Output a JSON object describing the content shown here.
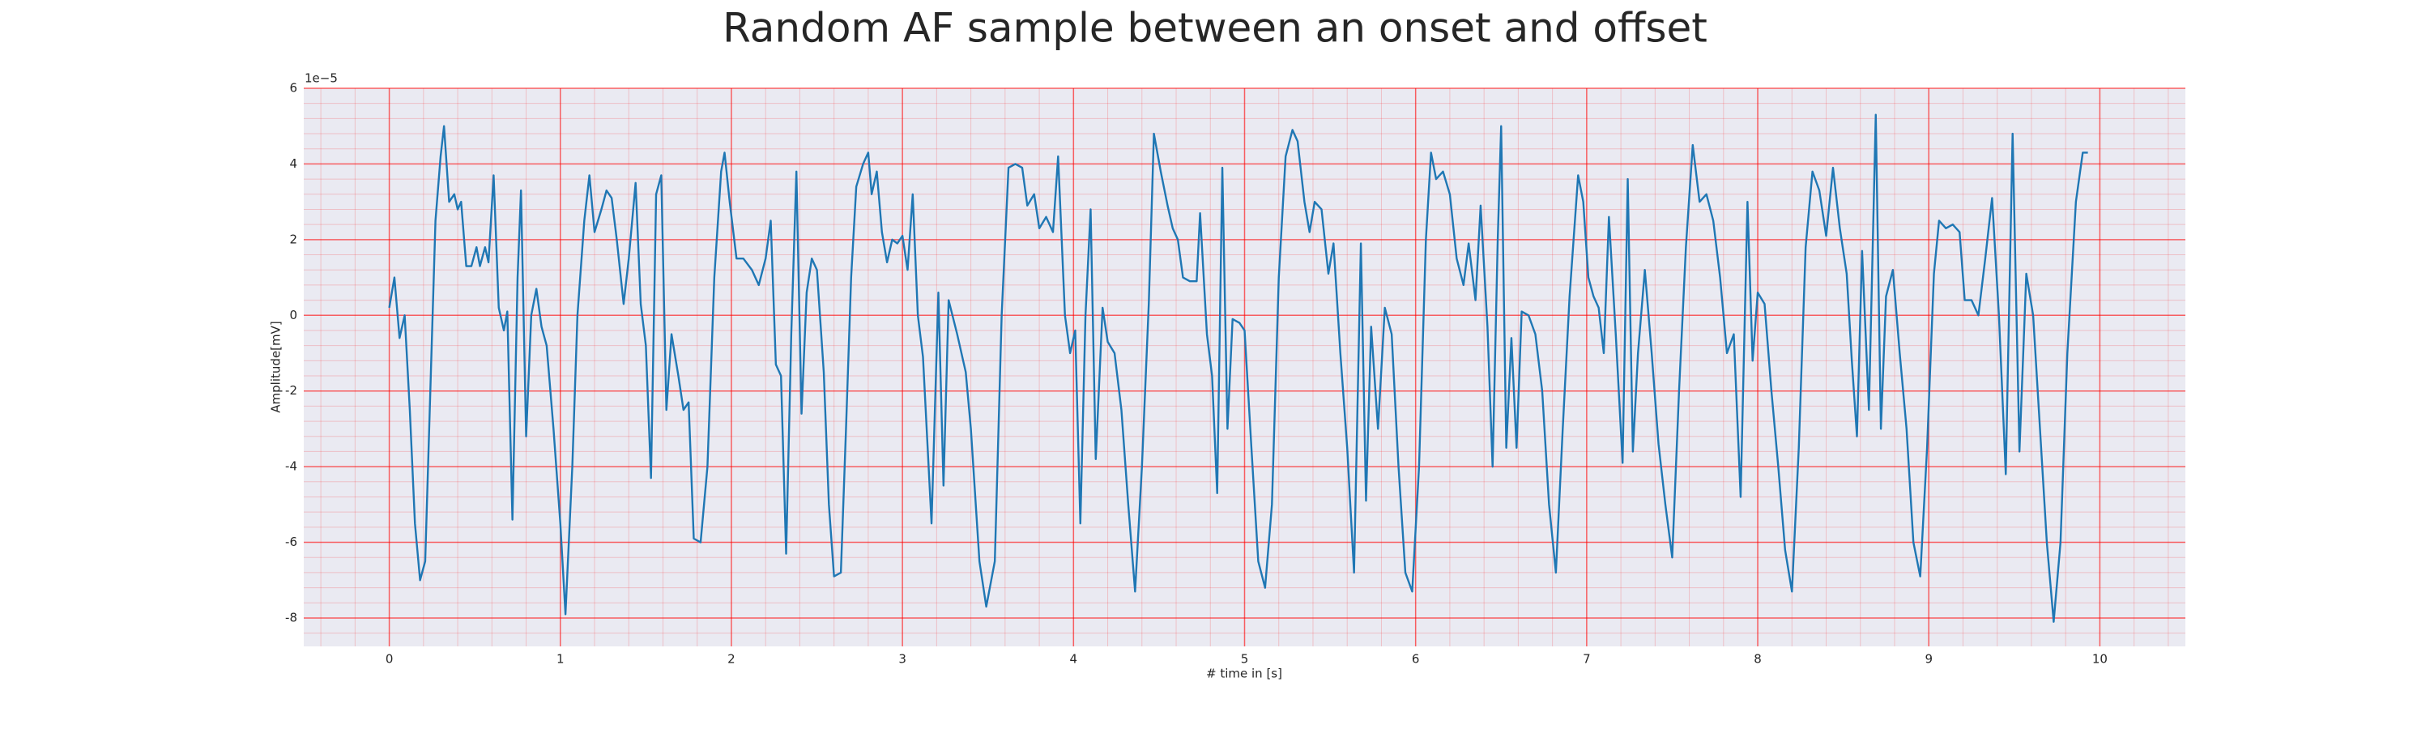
{
  "chart_data": {
    "type": "line",
    "title": "Random AF sample between an onset and offset",
    "xlabel": "# time in [s]",
    "ylabel": "Amplitude[mV]",
    "offset_label": "1e−5",
    "xlim": [
      -0.5,
      10.5
    ],
    "xticks": [
      0,
      1,
      2,
      3,
      4,
      5,
      6,
      7,
      8,
      9,
      10
    ],
    "ylim": [
      -8.75,
      6
    ],
    "yticks": [
      -8,
      -6,
      -4,
      -2,
      0,
      2,
      4,
      6
    ],
    "grid": true,
    "minor_grid": true,
    "grid_color": "#ff0000",
    "background": "#eaeaf2",
    "series": [
      {
        "color": "#1f77b4",
        "x": [
          0,
          0.03,
          0.06,
          0.09,
          0.12,
          0.15,
          0.18,
          0.21,
          0.24,
          0.27,
          0.3,
          0.32,
          0.35,
          0.38,
          0.4,
          0.42,
          0.45,
          0.48,
          0.51,
          0.53,
          0.56,
          0.58,
          0.61,
          0.64,
          0.67,
          0.69,
          0.72,
          0.75,
          0.77,
          0.8,
          0.83,
          0.86,
          0.89,
          0.92,
          0.96,
          1.0,
          1.03,
          1.07,
          1.1,
          1.14,
          1.17,
          1.2,
          1.24,
          1.27,
          1.3,
          1.33,
          1.37,
          1.4,
          1.44,
          1.47,
          1.5,
          1.53,
          1.56,
          1.59,
          1.62,
          1.65,
          1.69,
          1.72,
          1.75,
          1.78,
          1.82,
          1.86,
          1.9,
          1.94,
          1.96,
          1.99,
          2.03,
          2.07,
          2.12,
          2.16,
          2.2,
          2.23,
          2.26,
          2.29,
          2.32,
          2.35,
          2.38,
          2.41,
          2.44,
          2.47,
          2.5,
          2.54,
          2.57,
          2.6,
          2.64,
          2.67,
          2.7,
          2.73,
          2.77,
          2.8,
          2.82,
          2.85,
          2.88,
          2.91,
          2.94,
          2.97,
          3.0,
          3.03,
          3.06,
          3.09,
          3.12,
          3.17,
          3.21,
          3.24,
          3.27,
          3.32,
          3.37,
          3.4,
          3.45,
          3.49,
          3.54,
          3.58,
          3.62,
          3.66,
          3.7,
          3.73,
          3.77,
          3.8,
          3.84,
          3.88,
          3.91,
          3.95,
          3.98,
          4.01,
          4.04,
          4.07,
          4.1,
          4.13,
          4.17,
          4.2,
          4.24,
          4.28,
          4.32,
          4.36,
          4.4,
          4.44,
          4.47,
          4.51,
          4.55,
          4.58,
          4.61,
          4.64,
          4.68,
          4.72,
          4.74,
          4.78,
          4.81,
          4.84,
          4.87,
          4.9,
          4.93,
          4.97,
          5.0,
          5.04,
          5.08,
          5.12,
          5.16,
          5.2,
          5.24,
          5.28,
          5.31,
          5.35,
          5.38,
          5.41,
          5.45,
          5.49,
          5.52,
          5.56,
          5.6,
          5.64,
          5.68,
          5.71,
          5.74,
          5.78,
          5.82,
          5.86,
          5.9,
          5.94,
          5.98,
          6.02,
          6.06,
          6.09,
          6.12,
          6.16,
          6.2,
          6.24,
          6.28,
          6.31,
          6.35,
          6.38,
          6.42,
          6.45,
          6.48,
          6.5,
          6.53,
          6.56,
          6.59,
          6.62,
          6.66,
          6.7,
          6.74,
          6.78,
          6.82,
          6.86,
          6.9,
          6.95,
          6.98,
          7.01,
          7.04,
          7.07,
          7.1,
          7.13,
          7.17,
          7.21,
          7.24,
          7.27,
          7.3,
          7.34,
          7.38,
          7.42,
          7.46,
          7.5,
          7.54,
          7.58,
          7.62,
          7.66,
          7.7,
          7.74,
          7.78,
          7.82,
          7.86,
          7.9,
          7.94,
          7.97,
          8.0,
          8.04,
          8.08,
          8.12,
          8.16,
          8.2,
          8.24,
          8.28,
          8.32,
          8.36,
          8.4,
          8.44,
          8.48,
          8.52,
          8.55,
          8.58,
          8.61,
          8.65,
          8.69,
          8.72,
          8.75,
          8.79,
          8.83,
          8.87,
          8.91,
          8.95,
          8.99,
          9.03,
          9.06,
          9.1,
          9.14,
          9.18,
          9.21,
          9.25,
          9.29,
          9.33,
          9.37,
          9.41,
          9.45,
          9.49,
          9.53,
          9.57,
          9.61,
          9.65,
          9.69,
          9.73,
          9.77,
          9.81,
          9.86,
          9.9,
          9.93
        ],
        "values": [
          0.2,
          1.0,
          -0.6,
          0,
          -2.5,
          -5.5,
          -7.0,
          -6.5,
          -2,
          2.5,
          4.2,
          5.0,
          3.0,
          3.2,
          2.8,
          3.0,
          1.3,
          1.3,
          1.8,
          1.3,
          1.8,
          1.4,
          3.7,
          0.2,
          -0.4,
          0.1,
          -5.4,
          1.0,
          3.3,
          -3.2,
          0,
          0.7,
          -0.3,
          -0.8,
          -3,
          -5.5,
          -7.9,
          -4,
          0,
          2.5,
          3.7,
          2.2,
          2.8,
          3.3,
          3.1,
          2.0,
          0.3,
          1.5,
          3.5,
          0.3,
          -0.8,
          -4.3,
          3.2,
          3.7,
          -2.5,
          -0.5,
          -1.6,
          -2.5,
          -2.3,
          -5.9,
          -6,
          -4,
          1,
          3.8,
          4.3,
          3,
          1.5,
          1.5,
          1.2,
          0.8,
          1.5,
          2.5,
          -1.3,
          -1.6,
          -6.3,
          -0.5,
          3.8,
          -2.6,
          0.6,
          1.5,
          1.2,
          -1.5,
          -5,
          -6.9,
          -6.8,
          -3,
          1,
          3.4,
          4,
          4.3,
          3.2,
          3.8,
          2.2,
          1.4,
          2,
          1.9,
          2.1,
          1.2,
          3.2,
          0,
          -1.1,
          -5.5,
          0.6,
          -4.5,
          0.4,
          -0.5,
          -1.5,
          -3,
          -6.5,
          -7.7,
          -6.5,
          0,
          3.9,
          4.0,
          3.9,
          2.9,
          3.2,
          2.3,
          2.6,
          2.2,
          4.2,
          0,
          -1,
          -0.4,
          -5.5,
          0,
          2.8,
          -3.8,
          0.2,
          -0.7,
          -1,
          -2.5,
          -5,
          -7.3,
          -4,
          0.3,
          4.8,
          3.8,
          2.9,
          2.3,
          2.0,
          1.0,
          0.9,
          0.9,
          2.7,
          -0.5,
          -1.6,
          -4.7,
          3.9,
          -3,
          -0.1,
          -0.2,
          -0.4,
          -3.5,
          -6.5,
          -7.2,
          -5,
          1,
          4.2,
          4.9,
          4.6,
          3.0,
          2.2,
          3.0,
          2.8,
          1.1,
          1.9,
          -1,
          -3.5,
          -6.8,
          1.9,
          -4.9,
          -0.3,
          -3,
          0.2,
          -0.5,
          -4,
          -6.8,
          -7.3,
          -4,
          2,
          4.3,
          3.6,
          3.8,
          3.2,
          1.5,
          0.8,
          1.9,
          0.4,
          2.9,
          -0.3,
          -4,
          2,
          5,
          -3.5,
          -0.6,
          -3.5,
          0.1,
          0,
          -0.5,
          -2,
          -5,
          -6.8,
          -3,
          0.5,
          3.7,
          3,
          1,
          0.5,
          0.2,
          -1,
          2.6,
          -0.5,
          -3.9,
          3.6,
          -3.6,
          -1,
          1.2,
          -1,
          -3.4,
          -5,
          -6.4,
          -2,
          1.8,
          4.5,
          3,
          3.2,
          2.5,
          1.0,
          -1,
          -0.5,
          -4.8,
          3,
          -1.2,
          0.6,
          0.3,
          -2,
          -4,
          -6.2,
          -7.3,
          -3.5,
          1.8,
          3.8,
          3.3,
          2.1,
          3.9,
          2.3,
          1.1,
          -1.2,
          -3.2,
          1.7,
          -2.5,
          5.3,
          -3,
          0.5,
          1.2,
          -1,
          -3,
          -6,
          -6.9,
          -3.5,
          1.1,
          2.5,
          2.3,
          2.4,
          2.2,
          0.4,
          0.4,
          0,
          1.5,
          3.1,
          0,
          -4.2,
          4.8,
          -3.6,
          1.1,
          0,
          -3,
          -6,
          -8.1,
          -6,
          -1,
          3,
          4.3,
          4.3
        ]
      }
    ]
  }
}
